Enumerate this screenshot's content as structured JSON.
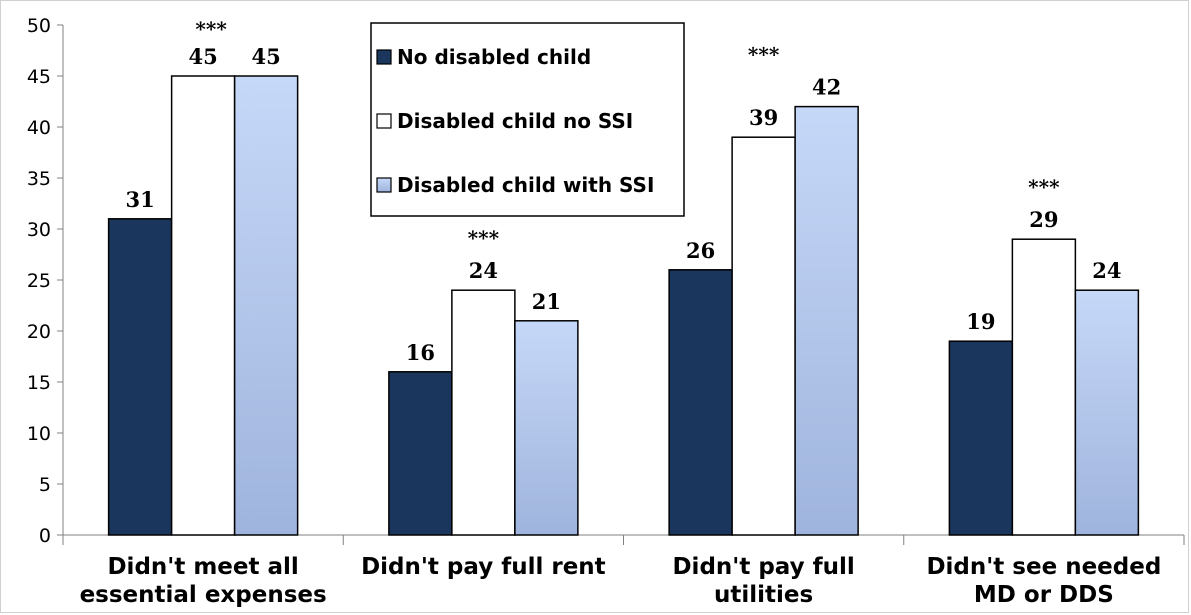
{
  "chart_data": {
    "type": "bar",
    "title": "",
    "xlabel": "",
    "ylabel": "",
    "ylim": [
      0,
      50
    ],
    "yticks": [
      0,
      5,
      10,
      15,
      20,
      25,
      30,
      35,
      40,
      45,
      50
    ],
    "grid": false,
    "legend_position": "top-center",
    "categories": [
      [
        "Didn't meet all",
        "essential expenses"
      ],
      [
        "Didn't pay full rent"
      ],
      [
        "Didn't pay full",
        "utilities"
      ],
      [
        "Didn't see needed",
        "MD or DDS"
      ]
    ],
    "series": [
      {
        "name": "No disabled child",
        "values": [
          31,
          16,
          26,
          19
        ],
        "color": "#1b365d"
      },
      {
        "name": "Disabled child no SSI",
        "values": [
          45,
          24,
          39,
          29
        ],
        "color": "#ffffff"
      },
      {
        "name": "Disabled child with SSI",
        "values": [
          45,
          21,
          42,
          24
        ],
        "color": "#c5d6f5"
      }
    ],
    "significance": [
      "***",
      "***",
      "***",
      "***"
    ]
  }
}
